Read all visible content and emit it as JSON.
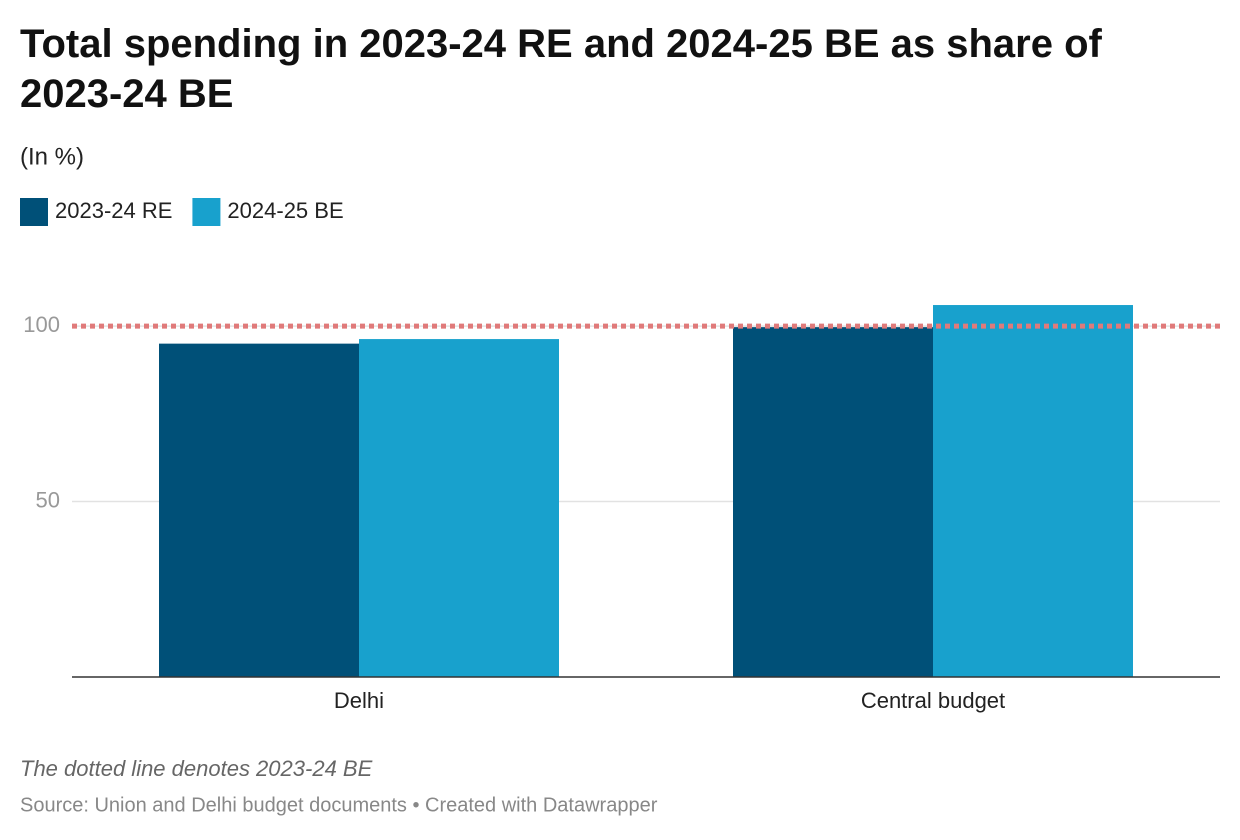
{
  "chart_data": {
    "type": "bar",
    "title": "Total spending in 2023-24 RE and 2024-25 BE as share of 2023-24 BE",
    "subtitle": "(In %)",
    "categories": [
      "Delhi",
      "Central budget"
    ],
    "series": [
      {
        "name": "2023-24 RE",
        "color": "#005078",
        "values": [
          95,
          99.7
        ]
      },
      {
        "name": "2024-25 BE",
        "color": "#18a1cd",
        "values": [
          96.3,
          106
        ]
      }
    ],
    "ylim": [
      0,
      110
    ],
    "yticks": [
      50,
      100
    ],
    "grid": true,
    "reference_line": {
      "value": 100,
      "color": "#e07a7a"
    },
    "note": "The dotted line denotes 2023-24 BE",
    "source": "Source: Union and Delhi budget documents • Created with Datawrapper"
  }
}
